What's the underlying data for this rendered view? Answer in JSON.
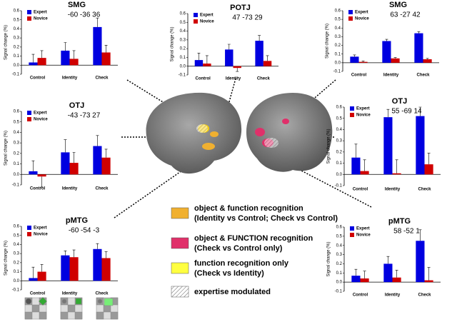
{
  "chart_data": [
    {
      "type": "bar",
      "title": "SMG",
      "subtitle": "-60 -36 36",
      "y_label": "Signal change (%)",
      "categories": [
        "Control",
        "Identity",
        "Check"
      ],
      "series": [
        {
          "name": "Expert",
          "color": "#0000e0",
          "values": [
            0.03,
            0.16,
            0.42
          ],
          "errors": [
            0.09,
            0.09,
            0.1
          ]
        },
        {
          "name": "Novice",
          "color": "#d00000",
          "values": [
            0.08,
            0.07,
            0.14
          ],
          "errors": [
            0.08,
            0.09,
            0.08
          ]
        }
      ],
      "ylim": [
        -0.1,
        0.6
      ],
      "yticks": [
        -0.1,
        {
          "value": 0,
          "label": "0.0"
        },
        0.1,
        0.2,
        0.3,
        0.4,
        0.5,
        0.6
      ]
    },
    {
      "type": "bar",
      "title": "POTJ",
      "subtitle": "47 -73 29",
      "y_label": "Signal change (%)",
      "categories": [
        "Control",
        "Identity",
        "Check"
      ],
      "series": [
        {
          "name": "Expert",
          "color": "#0000e0",
          "values": [
            0.07,
            0.19,
            0.29
          ],
          "errors": [
            0.08,
            0.06,
            0.06
          ]
        },
        {
          "name": "Novice",
          "color": "#d00000",
          "values": [
            0.03,
            -0.02,
            0.06
          ],
          "errors": [
            0.09,
            0.04,
            0.06
          ]
        }
      ],
      "ylim": [
        -0.1,
        0.6
      ],
      "yticks": [
        -0.1,
        {
          "value": 0,
          "label": "0.0"
        },
        0.1,
        0.2,
        0.3,
        0.4,
        0.5,
        0.6
      ]
    },
    {
      "type": "bar",
      "title": "SMG",
      "subtitle": "63 -27 42",
      "y_label": "Signal change (%)",
      "categories": [
        "Control",
        "Identity",
        "Check"
      ],
      "series": [
        {
          "name": "Expert",
          "color": "#0000e0",
          "values": [
            0.07,
            0.25,
            0.34
          ],
          "errors": [
            0.02,
            0.02,
            0.02
          ]
        },
        {
          "name": "Novice",
          "color": "#d00000",
          "values": [
            0.01,
            0.05,
            0.04
          ],
          "errors": [
            0.01,
            0.01,
            0.01
          ]
        }
      ],
      "ylim": [
        -0.1,
        0.6
      ],
      "yticks": [
        -0.1,
        {
          "value": 0,
          "label": "0.0"
        },
        0.1,
        0.2,
        0.3,
        0.4,
        0.5,
        0.6
      ]
    },
    {
      "type": "bar",
      "title": "OTJ",
      "subtitle": "-43 -73 27",
      "y_label": "Signal change (%)",
      "categories": [
        "Control",
        "Identity",
        "Check"
      ],
      "series": [
        {
          "name": "Expert",
          "color": "#0000e0",
          "values": [
            0.03,
            0.21,
            0.27
          ],
          "errors": [
            0.1,
            0.12,
            0.1
          ]
        },
        {
          "name": "Novice",
          "color": "#d00000",
          "values": [
            -0.02,
            0.11,
            0.16
          ],
          "errors": [
            0.1,
            0.1,
            0.08
          ]
        }
      ],
      "ylim": [
        -0.1,
        0.6
      ],
      "yticks": [
        -0.1,
        {
          "value": 0,
          "label": "0.0"
        },
        0.1,
        0.2,
        0.3,
        0.4,
        0.5,
        0.6
      ]
    },
    {
      "type": "bar",
      "title": "OTJ",
      "subtitle": "55 -69 14",
      "y_label": "Signal change (%)",
      "categories": [
        "Control",
        "Identity",
        "Check"
      ],
      "series": [
        {
          "name": "Expert",
          "color": "#0000e0",
          "values": [
            0.15,
            0.51,
            0.52
          ],
          "errors": [
            0.12,
            0.07,
            0.08
          ]
        },
        {
          "name": "Novice",
          "color": "#d00000",
          "values": [
            0.03,
            0.01,
            0.09
          ],
          "errors": [
            0.1,
            0.12,
            0.1
          ]
        }
      ],
      "ylim": [
        -0.1,
        0.6
      ],
      "yticks": [
        -0.1,
        {
          "value": 0,
          "label": "0.0"
        },
        0.1,
        0.2,
        0.3,
        0.4,
        0.5,
        0.6
      ]
    },
    {
      "type": "bar",
      "title": "pMTG",
      "subtitle": "-60 -54 -3",
      "y_label": "Signal change (%)",
      "categories": [
        "Control",
        "Identity",
        "Check"
      ],
      "series": [
        {
          "name": "Expert",
          "color": "#0000e0",
          "values": [
            0.03,
            0.28,
            0.35
          ],
          "errors": [
            0.12,
            0.05,
            0.06
          ]
        },
        {
          "name": "Novice",
          "color": "#d00000",
          "values": [
            0.1,
            0.26,
            0.25
          ],
          "errors": [
            0.08,
            0.08,
            0.07
          ]
        }
      ],
      "ylim": [
        -0.1,
        0.6
      ],
      "yticks": [
        -0.1,
        {
          "value": 0,
          "label": "0.0"
        },
        0.1,
        0.2,
        0.3,
        0.4,
        0.5,
        0.6
      ]
    },
    {
      "type": "bar",
      "title": "pMTG",
      "subtitle": "58 -52 1",
      "y_label": "Signal change (%)",
      "categories": [
        "Control",
        "Identity",
        "Check"
      ],
      "series": [
        {
          "name": "Expert",
          "color": "#0000e0",
          "values": [
            0.07,
            0.2,
            0.45
          ],
          "errors": [
            0.07,
            0.08,
            0.12
          ]
        },
        {
          "name": "Novice",
          "color": "#d00000",
          "values": [
            0.04,
            0.05,
            0.02
          ],
          "errors": [
            0.08,
            0.08,
            0.14
          ]
        }
      ],
      "ylim": [
        -0.1,
        0.6
      ],
      "yticks": [
        -0.1,
        {
          "value": 0,
          "label": "0.0"
        },
        0.1,
        0.2,
        0.3,
        0.4,
        0.5,
        0.6
      ]
    }
  ],
  "key": [
    {
      "line1": "object & function recognition",
      "line2": "(Identity vs Control; Check vs Control)"
    },
    {
      "line1": "object & FUNCTION recognition",
      "line2": "(Check vs Control only)"
    },
    {
      "line1": "function recognition only",
      "line2": "(Check vs Identity)"
    },
    {
      "line1": "expertise modulated"
    }
  ]
}
